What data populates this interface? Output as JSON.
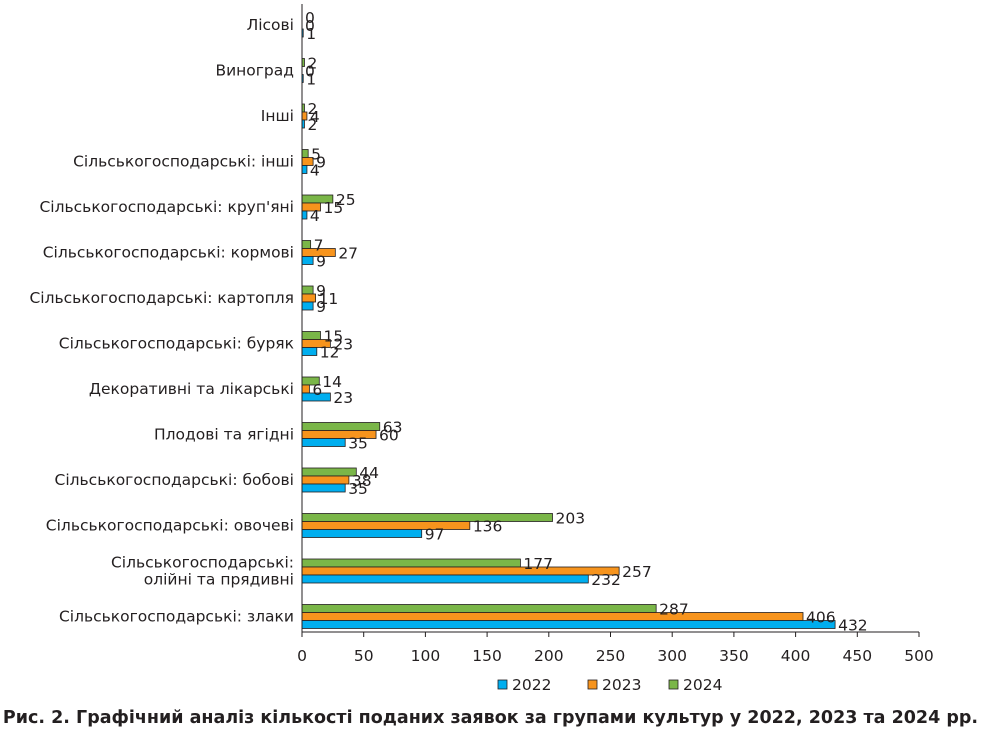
{
  "chart_data": {
    "type": "bar",
    "orientation": "horizontal",
    "categories": [
      "Лісові",
      "Виноград",
      "Інші",
      "Сільськогосподарські: інші",
      "Сільськогосподарські: круп'яні",
      "Сільськогосподарські: кормові",
      "Сільськогосподарські: картопля",
      "Сільськогосподарські: буряк",
      "Декоративні та лікарські",
      "Плодові та ягідні",
      "Сільськогосподарські: бобові",
      "Сільськогосподарські: овочеві",
      "Сільськогосподарські: олійні та прядивні",
      "Сільськогосподарські: злаки"
    ],
    "category_lines": [
      [
        "Лісові"
      ],
      [
        "Виноград"
      ],
      [
        "Інші"
      ],
      [
        "Сільськогосподарські: інші"
      ],
      [
        "Сільськогосподарські: круп'яні"
      ],
      [
        "Сільськогосподарські: кормові"
      ],
      [
        "Сільськогосподарські: картопля"
      ],
      [
        "Сільськогосподарські: буряк"
      ],
      [
        "Декоративні та лікарські"
      ],
      [
        "Плодові та ягідні"
      ],
      [
        "Сільськогосподарські: бобові"
      ],
      [
        "Сільськогосподарські: овочеві"
      ],
      [
        "Сільськогосподарські:",
        "олійні та прядивні"
      ],
      [
        "Сільськогосподарські: злаки"
      ]
    ],
    "series": [
      {
        "name": "2024",
        "color": "#7ab648",
        "values": [
          0,
          2,
          2,
          5,
          25,
          7,
          9,
          15,
          14,
          63,
          44,
          203,
          177,
          287
        ]
      },
      {
        "name": "2023",
        "color": "#f7941d",
        "values": [
          0,
          0,
          4,
          9,
          15,
          27,
          11,
          23,
          6,
          60,
          38,
          136,
          257,
          406
        ]
      },
      {
        "name": "2022",
        "color": "#00aeef",
        "values": [
          1,
          1,
          2,
          4,
          4,
          9,
          9,
          12,
          23,
          35,
          35,
          97,
          232,
          432
        ]
      }
    ],
    "legend_order": [
      "2022",
      "2023",
      "2024"
    ],
    "legend_position": "bottom",
    "xlim": [
      0,
      500
    ],
    "xticks": [
      0,
      50,
      100,
      150,
      200,
      250,
      300,
      350,
      400,
      450,
      500
    ],
    "grid": false,
    "title": "",
    "xlabel": "",
    "ylabel": ""
  },
  "caption": "Рис. 2. Графічний аналіз кількості поданих заявок за групами культур у 2022, 2023 та 2024 рр."
}
